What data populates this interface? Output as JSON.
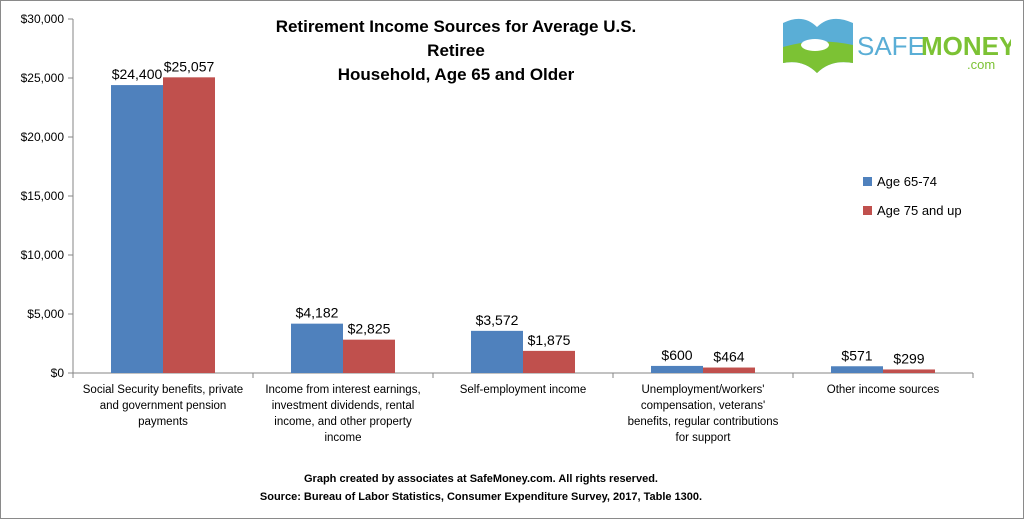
{
  "chart_data": {
    "type": "bar",
    "title": "Retirement Income Sources for Average U.S. Retiree Household, Age 65 and Older",
    "title_lines": [
      "Retirement Income Sources for Average U.S. Retiree",
      "Household, Age 65 and Older"
    ],
    "categories": [
      [
        "Social Security benefits, private",
        "and government pension",
        "payments"
      ],
      [
        "Income from interest earnings,",
        "investment dividends, rental",
        "income, and other property",
        "income"
      ],
      [
        "Self-employment income"
      ],
      [
        "Unemployment/workers'",
        "compensation, veterans'",
        "benefits, regular contributions",
        "for support"
      ],
      [
        "Other income sources"
      ]
    ],
    "series": [
      {
        "name": "Age 65-74",
        "color": "#4f81bd",
        "values": [
          24400,
          4182,
          3572,
          600,
          571
        ],
        "labels": [
          "$24,400",
          "$4,182",
          "$3,572",
          "$600",
          "$571"
        ]
      },
      {
        "name": "Age 75 and up",
        "color": "#c0504d",
        "values": [
          25057,
          2825,
          1875,
          464,
          299
        ],
        "labels": [
          "$25,057",
          "$2,825",
          "$1,875",
          "$464",
          "$299"
        ]
      }
    ],
    "ylim": [
      0,
      30000
    ],
    "yticks": [
      0,
      5000,
      10000,
      15000,
      20000,
      25000,
      30000
    ],
    "ytick_labels": [
      "$0",
      "$5,000",
      "$10,000",
      "$15,000",
      "$20,000",
      "$25,000",
      "$30,000"
    ],
    "grid": false,
    "legend": "right"
  },
  "logo": {
    "text_safe": "SAFE",
    "text_money": "MONEY",
    "text_com": ".com"
  },
  "footer": {
    "line1": "Graph created by associates at SafeMoney.com. All rights reserved.",
    "line2": "Source: Bureau of Labor Statistics, Consumer Expenditure Survey, 2017,  Table 1300."
  }
}
